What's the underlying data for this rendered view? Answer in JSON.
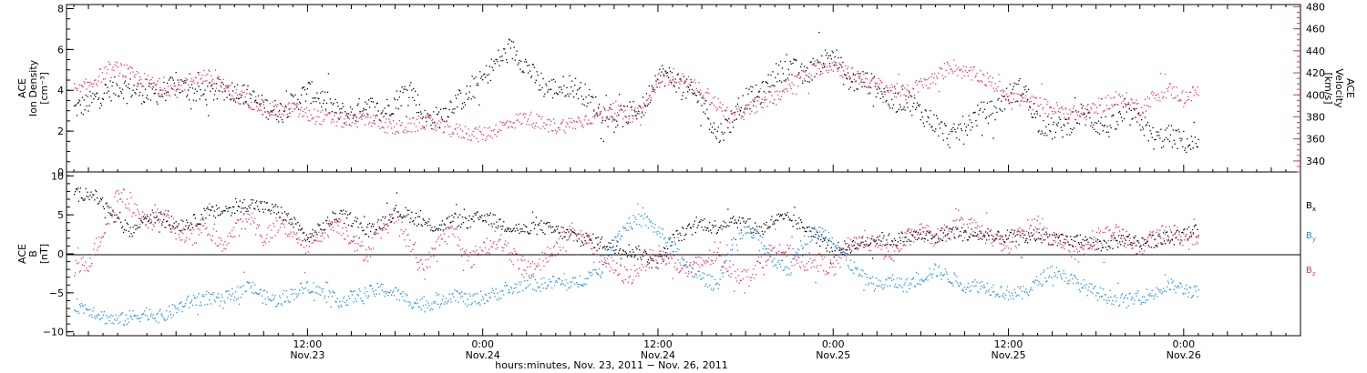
{
  "colors": {
    "black": "#000000",
    "red": "#e8336d",
    "blue": "#1f8fe0"
  },
  "xaxis": {
    "title": "hours:minutes, Nov. 23, 2011 − Nov. 26, 2011",
    "range_hours": [
      -4.5,
      80
    ],
    "major_ticks": [
      {
        "hour": 12,
        "time": "12:00",
        "date": "Nov.23"
      },
      {
        "hour": 24,
        "time": "0:00",
        "date": "Nov.24"
      },
      {
        "hour": 36,
        "time": "12:00",
        "date": "Nov.24"
      },
      {
        "hour": 48,
        "time": "0:00",
        "date": "Nov.25"
      },
      {
        "hour": 60,
        "time": "12:00",
        "date": "Nov.25"
      },
      {
        "hour": 72,
        "time": "0:00",
        "date": "Nov.26"
      }
    ]
  },
  "chart_data": [
    {
      "type": "scatter",
      "panel": "plasma",
      "left_axis": {
        "label_lines": [
          "ACE",
          "Ion Density",
          "[cm⁻³]"
        ],
        "ylim": [
          0,
          8.2
        ],
        "ticks": [
          "0",
          "2",
          "4",
          "6",
          "8"
        ],
        "color": "#000000"
      },
      "right_axis": {
        "label_lines": [
          "ACE",
          "Velocity",
          "[km/s]"
        ],
        "ylim": [
          330,
          482
        ],
        "ticks": [
          "340",
          "360",
          "380",
          "400",
          "420",
          "440",
          "460",
          "480"
        ],
        "color": "#e8336d"
      },
      "series": [
        {
          "color": "#000000",
          "axis": "left",
          "x": [
            -4,
            -3,
            -2,
            -1,
            0,
            1,
            2,
            3,
            4,
            5,
            6,
            7,
            8,
            9,
            10,
            11,
            12,
            13,
            14,
            15,
            16,
            17,
            18,
            19,
            20,
            21,
            22,
            23,
            24,
            25,
            26,
            27,
            28,
            29,
            30,
            31,
            32,
            33,
            34,
            35,
            36,
            37,
            38,
            39,
            40,
            41,
            42,
            43,
            44,
            45,
            46,
            47,
            48,
            49,
            50,
            51,
            52,
            53,
            54,
            55,
            56,
            57,
            58,
            59,
            60,
            61,
            62,
            63,
            64,
            65,
            66,
            67,
            68,
            69,
            70,
            71,
            72,
            73
          ],
          "y": [
            3.1,
            3.4,
            3.9,
            4.2,
            4.1,
            3.8,
            3.9,
            4.3,
            4.0,
            3.8,
            4.1,
            4.0,
            3.7,
            3.2,
            3.0,
            3.4,
            4.0,
            3.6,
            3.0,
            2.8,
            3.4,
            2.9,
            3.5,
            4.2,
            2.6,
            2.7,
            3.4,
            3.8,
            4.6,
            5.5,
            6.0,
            5.2,
            4.2,
            4.1,
            4.3,
            3.8,
            3.0,
            2.6,
            2.9,
            3.2,
            4.9,
            4.6,
            4.0,
            3.5,
            1.8,
            2.5,
            3.6,
            3.8,
            4.8,
            5.2,
            4.7,
            5.4,
            5.8,
            4.4,
            4.5,
            4.2,
            3.4,
            3.6,
            2.9,
            2.4,
            1.7,
            2.3,
            2.9,
            3.0,
            3.8,
            4.2,
            2.5,
            2.1,
            2.3,
            2.9,
            2.4,
            2.2,
            2.9,
            2.5,
            1.6,
            1.8,
            1.5,
            1.2
          ]
        },
        {
          "color": "#e8336d",
          "axis": "right",
          "x": [
            -4,
            -3,
            -2,
            -1,
            0,
            1,
            2,
            3,
            4,
            5,
            6,
            7,
            8,
            9,
            10,
            11,
            12,
            13,
            14,
            15,
            16,
            17,
            18,
            19,
            20,
            21,
            22,
            23,
            24,
            25,
            26,
            27,
            28,
            29,
            30,
            31,
            32,
            33,
            34,
            35,
            36,
            37,
            38,
            39,
            40,
            41,
            42,
            43,
            44,
            45,
            46,
            47,
            48,
            49,
            50,
            51,
            52,
            53,
            54,
            55,
            56,
            57,
            58,
            59,
            60,
            61,
            62,
            63,
            64,
            65,
            66,
            67,
            68,
            69,
            70,
            71,
            72,
            73
          ],
          "y": [
            400,
            410,
            420,
            425,
            418,
            412,
            408,
            405,
            415,
            418,
            410,
            400,
            395,
            390,
            385,
            388,
            382,
            380,
            378,
            376,
            380,
            374,
            370,
            372,
            376,
            372,
            368,
            366,
            364,
            370,
            376,
            380,
            374,
            372,
            374,
            378,
            384,
            386,
            382,
            388,
            414,
            418,
            410,
            404,
            392,
            380,
            386,
            394,
            398,
            410,
            418,
            425,
            428,
            420,
            415,
            410,
            405,
            402,
            410,
            415,
            428,
            420,
            418,
            410,
            400,
            394,
            392,
            388,
            385,
            382,
            390,
            394,
            396,
            388,
            400,
            405,
            398,
            404
          ]
        }
      ]
    },
    {
      "type": "scatter",
      "panel": "magnetic",
      "left_axis": {
        "label_lines": [
          "ACE",
          "B",
          "[nT]"
        ],
        "ylim": [
          -10.5,
          10.5
        ],
        "ticks": [
          "−10",
          "−5",
          "0",
          "5",
          "10"
        ],
        "color": "#000000"
      },
      "series": [
        {
          "name": "B",
          "subscript": "x",
          "color": "#000000",
          "x": [
            -4,
            -3,
            -2,
            -1,
            0,
            1,
            2,
            3,
            4,
            5,
            6,
            7,
            8,
            9,
            10,
            11,
            12,
            13,
            14,
            15,
            16,
            17,
            18,
            19,
            20,
            21,
            22,
            23,
            24,
            25,
            26,
            27,
            28,
            29,
            30,
            31,
            32,
            33,
            34,
            35,
            36,
            37,
            38,
            39,
            40,
            41,
            42,
            43,
            44,
            45,
            46,
            47,
            48,
            49,
            50,
            51,
            52,
            53,
            54,
            55,
            56,
            57,
            58,
            59,
            60,
            61,
            62,
            63,
            64,
            65,
            66,
            67,
            68,
            69,
            70,
            71,
            72,
            73
          ],
          "y": [
            7.5,
            8.0,
            6.5,
            4.0,
            3.0,
            5.0,
            4.5,
            3.8,
            4.0,
            5.2,
            5.5,
            6.0,
            6.5,
            6.0,
            5.5,
            4.0,
            2.0,
            3.5,
            5.0,
            4.5,
            3.0,
            4.0,
            5.5,
            5.0,
            4.0,
            3.5,
            4.5,
            4.0,
            5.0,
            4.0,
            3.5,
            3.0,
            3.5,
            3.0,
            2.5,
            2.0,
            1.5,
            1.0,
            0.5,
            0.0,
            -1.0,
            2.0,
            3.0,
            4.0,
            3.5,
            4.5,
            4.0,
            3.0,
            4.5,
            4.5,
            3.5,
            2.0,
            0.5,
            1.0,
            1.5,
            2.0,
            1.8,
            2.2,
            2.5,
            2.0,
            3.0,
            2.5,
            2.5,
            2.0,
            2.3,
            2.0,
            2.5,
            2.0,
            1.5,
            2.0,
            1.0,
            1.5,
            2.0,
            1.5,
            1.8,
            2.0,
            2.5,
            3.0
          ]
        },
        {
          "name": "B",
          "subscript": "y",
          "color": "#1f8fe0",
          "x": [
            -4,
            -3,
            -2,
            -1,
            0,
            1,
            2,
            3,
            4,
            5,
            6,
            7,
            8,
            9,
            10,
            11,
            12,
            13,
            14,
            15,
            16,
            17,
            18,
            19,
            20,
            21,
            22,
            23,
            24,
            25,
            26,
            27,
            28,
            29,
            30,
            31,
            32,
            33,
            34,
            35,
            36,
            37,
            38,
            39,
            40,
            41,
            42,
            43,
            44,
            45,
            46,
            47,
            48,
            49,
            50,
            51,
            52,
            53,
            54,
            55,
            56,
            57,
            58,
            59,
            60,
            61,
            62,
            63,
            64,
            65,
            66,
            67,
            68,
            69,
            70,
            71,
            72,
            73
          ],
          "y": [
            -6.5,
            -7.0,
            -8.0,
            -8.5,
            -8.0,
            -7.5,
            -8.0,
            -7.0,
            -6.0,
            -5.5,
            -6.0,
            -5.0,
            -4.0,
            -5.5,
            -6.0,
            -5.0,
            -4.0,
            -5.0,
            -6.0,
            -5.5,
            -5.0,
            -4.5,
            -5.0,
            -6.0,
            -6.5,
            -6.0,
            -5.0,
            -6.0,
            -5.5,
            -5.0,
            -4.5,
            -3.5,
            -4.0,
            -3.5,
            -4.0,
            -3.0,
            -2.0,
            2.0,
            4.0,
            4.5,
            3.0,
            1.0,
            -2.0,
            -3.0,
            -4.0,
            1.0,
            3.0,
            2.0,
            -1.0,
            -2.0,
            2.0,
            3.0,
            2.0,
            -1.0,
            -3.0,
            -4.0,
            -3.5,
            -4.0,
            -3.0,
            -2.0,
            -3.0,
            -4.0,
            -4.0,
            -4.5,
            -5.0,
            -5.0,
            -3.5,
            -2.0,
            -3.0,
            -4.0,
            -5.0,
            -5.5,
            -6.0,
            -5.5,
            -5.0,
            -4.0,
            -4.5,
            -5.0
          ]
        },
        {
          "name": "B",
          "subscript": "z",
          "color": "#e8336d",
          "x": [
            -4,
            -3,
            -2,
            -1,
            0,
            1,
            2,
            3,
            4,
            5,
            6,
            7,
            8,
            9,
            10,
            11,
            12,
            13,
            14,
            15,
            16,
            17,
            18,
            19,
            20,
            21,
            22,
            23,
            24,
            25,
            26,
            27,
            28,
            29,
            30,
            31,
            32,
            33,
            34,
            35,
            36,
            37,
            38,
            39,
            40,
            41,
            42,
            43,
            44,
            45,
            46,
            47,
            48,
            49,
            50,
            51,
            52,
            53,
            54,
            55,
            56,
            57,
            58,
            59,
            60,
            61,
            62,
            63,
            64,
            65,
            66,
            67,
            68,
            69,
            70,
            71,
            72,
            73
          ],
          "y": [
            -2.0,
            -1.0,
            3.0,
            8.0,
            6.0,
            4.0,
            5.0,
            3.0,
            2.0,
            4.0,
            1.0,
            3.0,
            5.0,
            2.0,
            4.0,
            3.0,
            1.0,
            3.0,
            4.0,
            2.0,
            0.0,
            3.0,
            5.0,
            1.0,
            -2.0,
            2.0,
            3.0,
            -1.0,
            1.0,
            2.0,
            0.0,
            -2.0,
            -1.0,
            1.0,
            3.0,
            2.0,
            0.0,
            -2.0,
            -3.0,
            -1.0,
            0.0,
            -1.0,
            -2.0,
            -1.0,
            0.0,
            -2.0,
            -3.0,
            -1.0,
            1.0,
            0.0,
            -1.0,
            -1.0,
            -2.0,
            1.0,
            2.0,
            1.0,
            0.0,
            2.0,
            3.0,
            2.0,
            3.0,
            4.0,
            3.0,
            2.0,
            1.0,
            3.0,
            4.0,
            2.0,
            1.0,
            0.0,
            2.0,
            3.0,
            2.0,
            1.0,
            2.0,
            3.0,
            2.0,
            2.0
          ]
        }
      ]
    }
  ]
}
